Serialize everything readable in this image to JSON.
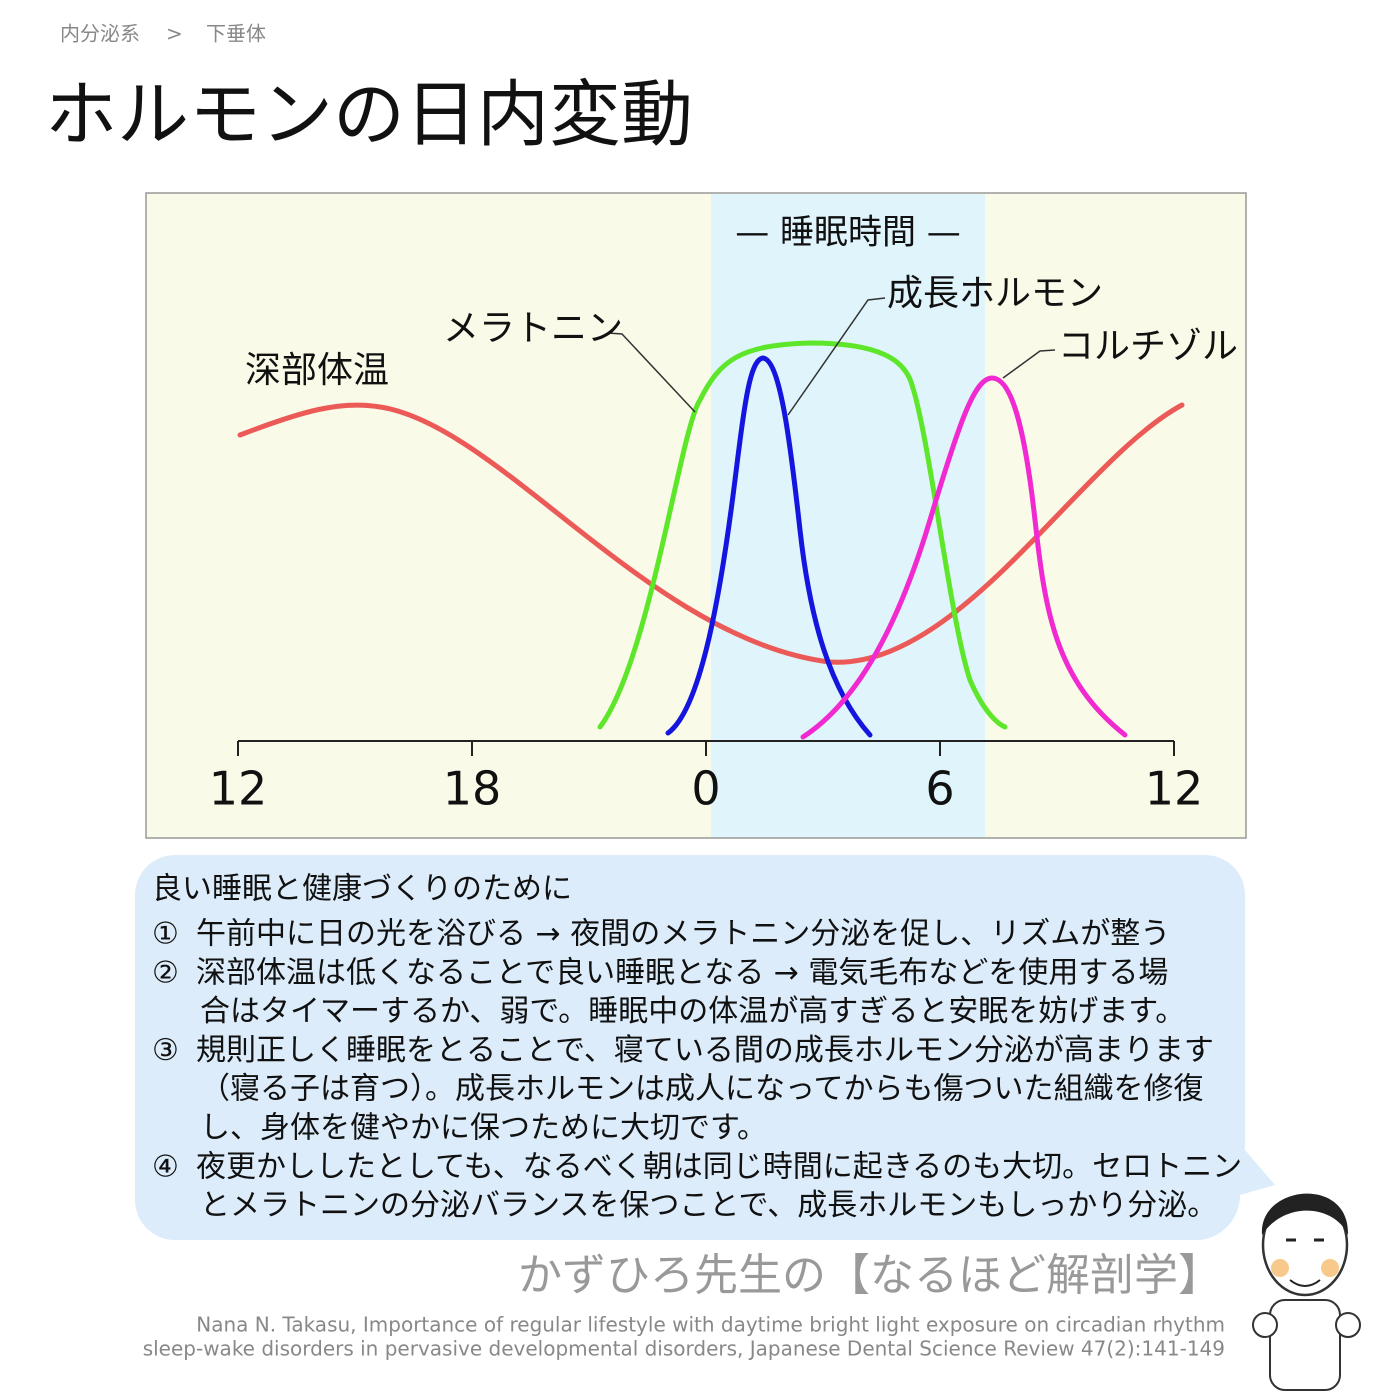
{
  "breadcrumb": [
    "内分泌系",
    ">",
    "下垂体"
  ],
  "title": "ホルモンの日内変動",
  "chart": {
    "band_label": "— 睡眠時間 —",
    "x_labels": [
      "12",
      "18",
      "0",
      "6",
      "12"
    ],
    "curve_labels": {
      "temperature": "深部体温",
      "melatonin": "メラトニン",
      "growth_hormone": "成長ホルモン",
      "cortisol": "コルチゾル"
    }
  },
  "notes": {
    "heading": "良い睡眠と健康づくりのために",
    "items": [
      {
        "num": "①",
        "lines": [
          "午前中に日の光を浴びる → 夜間のメラトニン分泌を促し、リズムが整う"
        ]
      },
      {
        "num": "②",
        "lines": [
          "深部体温は低くなることで良い睡眠となる → 電気毛布などを使用する場",
          "合はタイマーするか、弱で。睡眠中の体温が高すぎると安眠を妨げます。"
        ]
      },
      {
        "num": "③",
        "lines": [
          "規則正しく睡眠をとることで、寝ている間の成長ホルモン分泌が高まります",
          "（寝る子は育つ）。成長ホルモンは成人になってからも傷ついた組織を修復",
          "し、身体を健やかに保つために大切です。"
        ]
      },
      {
        "num": "④",
        "lines": [
          "夜更かししたとしても、なるべく朝は同じ時間に起きるのも大切。セロトニン",
          "とメラトニンの分泌バランスを保つことで、成長ホルモンもしっかり分泌。"
        ]
      }
    ]
  },
  "footer": {
    "brand": "かずひろ先生の【なるほど解剖学】",
    "citation": [
      "Nana N. Takasu, Importance of regular lifestyle with daytime bright light exposure on circadian rhythm",
      "sleep-wake disorders in pervasive developmental disorders, Japanese Dental Science Review 47(2):141-149"
    ]
  }
}
